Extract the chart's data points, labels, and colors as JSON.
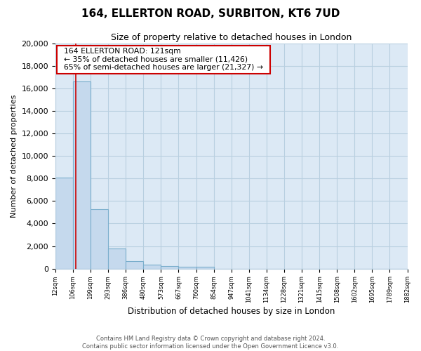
{
  "title": "164, ELLERTON ROAD, SURBITON, KT6 7UD",
  "subtitle": "Size of property relative to detached houses in London",
  "xlabel": "Distribution of detached houses by size in London",
  "ylabel": "Number of detached properties",
  "bar_values": [
    8100,
    16600,
    5300,
    1800,
    650,
    330,
    200,
    150,
    150,
    0,
    0,
    0,
    0,
    0,
    0,
    0,
    0,
    0,
    0,
    0
  ],
  "bar_color": "#c5d9ed",
  "bar_edge_color": "#7aaecc",
  "categories": [
    "12sqm",
    "106sqm",
    "199sqm",
    "293sqm",
    "386sqm",
    "480sqm",
    "573sqm",
    "667sqm",
    "760sqm",
    "854sqm",
    "947sqm",
    "1041sqm",
    "1134sqm",
    "1228sqm",
    "1321sqm",
    "1415sqm",
    "1508sqm",
    "1602sqm",
    "1695sqm",
    "1789sqm",
    "1882sqm"
  ],
  "vline_color": "#cc0000",
  "annotation_title": "164 ELLERTON ROAD: 121sqm",
  "annotation_line1": "← 35% of detached houses are smaller (11,426)",
  "annotation_line2": "65% of semi-detached houses are larger (21,327) →",
  "annotation_box_color": "#ffffff",
  "annotation_box_edge": "#cc0000",
  "ylim": [
    0,
    20000
  ],
  "yticks": [
    0,
    2000,
    4000,
    6000,
    8000,
    10000,
    12000,
    14000,
    16000,
    18000,
    20000
  ],
  "footer_line1": "Contains HM Land Registry data © Crown copyright and database right 2024.",
  "footer_line2": "Contains public sector information licensed under the Open Government Licence v3.0.",
  "background_color": "#ffffff",
  "axes_bg_color": "#dce9f5",
  "grid_color": "#b8cfe0"
}
